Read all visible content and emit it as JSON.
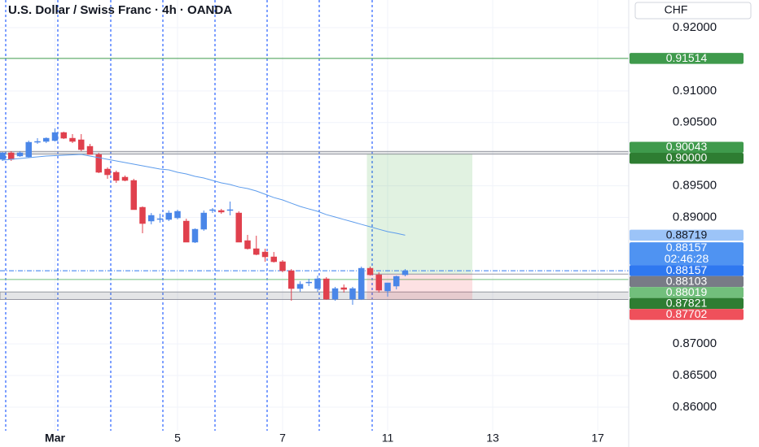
{
  "chart_data": {
    "type": "candlestick",
    "title": "U.S. Dollar / Swiss Franc · 4h · OANDA",
    "currency": "CHF",
    "up_color": "#4a86e8",
    "down_color": "#e0404d",
    "grid": true,
    "ylim": [
      0.85627,
      0.92437
    ],
    "yticks": [
      {
        "value": 0.92,
        "label": "0.92000"
      },
      {
        "value": 0.91,
        "label": "0.91000"
      },
      {
        "value": 0.905,
        "label": "0.90500"
      },
      {
        "value": 0.895,
        "label": "0.89500"
      },
      {
        "value": 0.89,
        "label": "0.89000"
      },
      {
        "value": 0.87,
        "label": "0.87000"
      },
      {
        "value": 0.865,
        "label": "0.86500"
      },
      {
        "value": 0.86,
        "label": "0.86000"
      }
    ],
    "categories": [
      null,
      null,
      null,
      null,
      null,
      null,
      "Mar",
      null,
      null,
      null,
      null,
      null,
      null,
      null,
      null,
      null,
      null,
      null,
      null,
      null,
      "5",
      null,
      null,
      null,
      null,
      null,
      null,
      null,
      null,
      null,
      null,
      null,
      "7",
      null,
      null,
      null,
      null,
      null,
      null,
      null,
      null,
      null,
      null,
      null,
      "11",
      null,
      null,
      null,
      null,
      null,
      null,
      null,
      null,
      null,
      null,
      null,
      "13",
      null,
      null,
      null,
      null,
      null,
      null,
      null,
      null,
      null,
      null,
      null,
      "17"
    ],
    "open": [
      0.89918,
      0.90021,
      0.8997,
      0.89957,
      0.90188,
      0.90201,
      0.90214,
      0.90342,
      0.90252,
      0.90227,
      0.90124,
      0.89995,
      0.89764,
      0.89713,
      0.89636,
      0.89584,
      0.8916,
      0.88942,
      0.88967,
      0.88967,
      0.88993,
      0.88942,
      0.88608,
      0.88813,
      0.89109,
      0.89109,
      0.89109,
      0.8907,
      0.88633,
      0.88505,
      0.88453,
      0.88376,
      0.88299,
      0.88157,
      0.87875,
      0.87965,
      0.87875,
      0.88029,
      0.87708,
      0.87888,
      0.87708,
      0.87708,
      0.88196,
      0.88093,
      0.87837,
      0.87914,
      0.88093,
      null,
      null,
      null,
      null,
      null,
      null,
      null,
      null,
      null,
      null,
      null,
      null,
      null,
      null,
      null,
      null,
      null,
      null,
      null,
      null,
      null,
      null
    ],
    "high": [
      0.90034,
      0.90047,
      0.90047,
      0.90214,
      0.90252,
      0.90265,
      0.90407,
      0.90355,
      0.90317,
      0.90317,
      0.90162,
      0.90021,
      0.8979,
      0.8974,
      0.89662,
      0.8961,
      0.89173,
      0.8907,
      0.89057,
      0.89109,
      0.89122,
      0.8898,
      0.88826,
      0.89109,
      0.89147,
      0.89135,
      0.8925,
      0.89096,
      0.88723,
      0.8871,
      0.88505,
      0.88453,
      0.88325,
      0.88183,
      0.8799,
      0.88029,
      0.8808,
      0.88055,
      0.87901,
      0.87939,
      0.87901,
      0.88222,
      0.88222,
      0.88132,
      0.87965,
      0.8808,
      0.88183,
      null,
      null,
      null,
      null,
      null,
      null,
      null,
      null,
      null,
      null,
      null,
      null,
      null,
      null,
      null,
      null,
      null,
      null,
      null,
      null,
      null,
      null
    ],
    "low": [
      0.89893,
      0.89893,
      0.89957,
      0.89944,
      0.90162,
      0.90175,
      0.90201,
      0.90239,
      0.90175,
      0.90047,
      0.89995,
      0.897,
      0.8961,
      0.89546,
      0.89571,
      0.89122,
      0.88749,
      0.8889,
      0.88916,
      0.88942,
      0.88967,
      0.88608,
      0.88595,
      0.88787,
      0.8907,
      0.89057,
      0.89032,
      0.88608,
      0.88492,
      0.88402,
      0.88299,
      0.88286,
      0.88132,
      0.87683,
      0.87824,
      0.87914,
      0.87824,
      0.87696,
      0.87683,
      0.87811,
      0.87618,
      0.87695,
      0.8808,
      0.87811,
      0.87747,
      0.87862,
      0.88068,
      null,
      null,
      null,
      null,
      null,
      null,
      null,
      null,
      null,
      null,
      null,
      null,
      null,
      null,
      null,
      null,
      null,
      null,
      null,
      null,
      null,
      null
    ],
    "close": [
      0.90021,
      0.89918,
      0.90021,
      0.90188,
      0.90201,
      0.90252,
      0.90342,
      0.90252,
      0.90201,
      0.90072,
      0.89995,
      0.89713,
      0.89674,
      0.89584,
      0.89584,
      0.89122,
      0.88903,
      0.89032,
      0.8898,
      0.8907,
      0.89096,
      0.88608,
      0.88813,
      0.8907,
      0.89122,
      0.89084,
      0.89122,
      0.88608,
      0.88505,
      0.88414,
      0.88376,
      0.88299,
      0.88157,
      0.87875,
      0.87944,
      0.87977,
      0.88029,
      0.87708,
      0.87875,
      0.87862,
      0.87875,
      0.88196,
      0.88093,
      0.87849,
      0.87965,
      0.88068,
      0.88157,
      null,
      null,
      null,
      null,
      null,
      null,
      null,
      null,
      null,
      null,
      null,
      null,
      null,
      null,
      null,
      null,
      null,
      null,
      null,
      null,
      null,
      null
    ],
    "moving_average": {
      "color": "#5d9cec",
      "values": [
        0.89905,
        0.89918,
        0.89931,
        0.89944,
        0.89957,
        0.8997,
        0.89976,
        0.89983,
        0.89989,
        0.89995,
        0.8997,
        0.89944,
        0.89918,
        0.89893,
        0.89867,
        0.89841,
        0.89816,
        0.8979,
        0.89764,
        0.89751,
        0.89713,
        0.89687,
        0.89649,
        0.89623,
        0.89584,
        0.89546,
        0.8952,
        0.89481,
        0.89456,
        0.89417,
        0.89366,
        0.89314,
        0.89276,
        0.89224,
        0.89173,
        0.89134,
        0.89096,
        0.89044,
        0.89006,
        0.88967,
        0.88929,
        0.8889,
        0.88852,
        0.88813,
        0.88775,
        0.88749,
        0.88719,
        null,
        null,
        null,
        null,
        null,
        null,
        null,
        null,
        null,
        null,
        null,
        null,
        null,
        null,
        null,
        null,
        null,
        null,
        null,
        null,
        null,
        null
      ]
    },
    "price_labels": [
      {
        "value": 0.91514,
        "label": "0.91514",
        "color": "#3f9a4c"
      },
      {
        "value": 0.90043,
        "label": "0.90043",
        "color": "#3f9a4c"
      },
      {
        "value": 0.9,
        "label": "0.90000",
        "color": "#2e7d32"
      },
      {
        "value": 0.88719,
        "label": "0.88719",
        "color": "#9cc4f8",
        "text_color": "#131722"
      },
      {
        "value": 0.88157,
        "label": "0.88157",
        "color": "#4f93f2",
        "countdown": "02:46:28"
      },
      {
        "value": 0.88157,
        "label": "0.88157",
        "color": "#2f78f0"
      },
      {
        "value": 0.88103,
        "label": "0.88103",
        "color": "#787b86"
      },
      {
        "value": 0.88019,
        "label": "0.88019",
        "color": "#72bf7c"
      },
      {
        "value": 0.87821,
        "label": "0.87821",
        "color": "#2e7d32"
      },
      {
        "value": 0.87702,
        "label": "0.87702",
        "color": "#ef505b"
      }
    ]
  }
}
